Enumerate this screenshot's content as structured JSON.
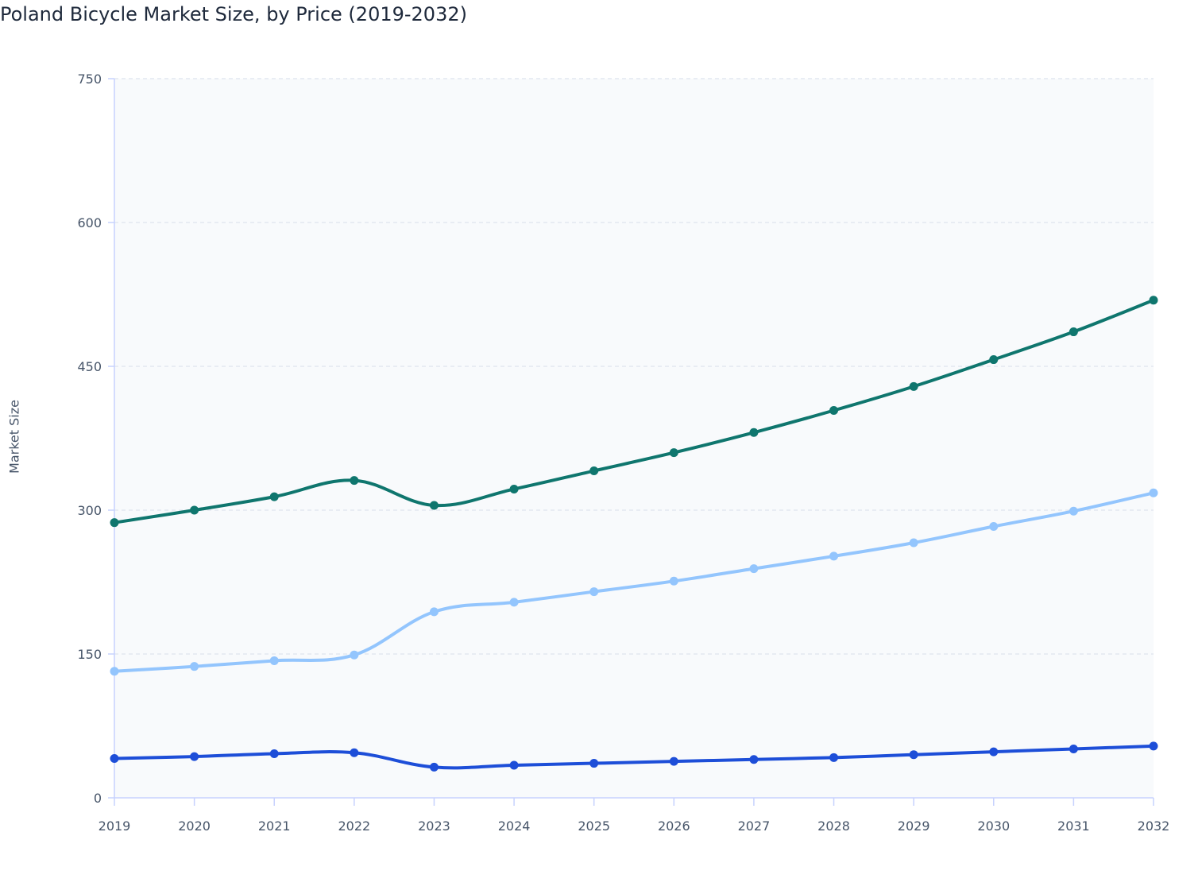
{
  "chart_data": {
    "type": "line",
    "title": "Poland Bicycle Market Size, by Price (2019-2032)",
    "xlabel": "",
    "ylabel": "Market Size",
    "ylim": [
      0,
      750
    ],
    "yticks": [
      "0",
      "150",
      "300",
      "450",
      "600",
      "750"
    ],
    "grid": true,
    "categories": [
      "2019",
      "2020",
      "2021",
      "2022",
      "2023",
      "2024",
      "2025",
      "2026",
      "2027",
      "2028",
      "2029",
      "2030",
      "2031",
      "2032"
    ],
    "series": [
      {
        "color": "#0f766e",
        "values": [
          287,
          300,
          314,
          331,
          305,
          322,
          341,
          360,
          381,
          404,
          429,
          457,
          486,
          519
        ]
      },
      {
        "color": "#93c5fd",
        "values": [
          132,
          137,
          143,
          149,
          194,
          204,
          215,
          226,
          239,
          252,
          266,
          283,
          299,
          318
        ]
      },
      {
        "color": "#1d4ed8",
        "values": [
          41,
          43,
          46,
          47,
          32,
          34,
          36,
          38,
          40,
          42,
          45,
          48,
          51,
          54
        ]
      }
    ]
  }
}
